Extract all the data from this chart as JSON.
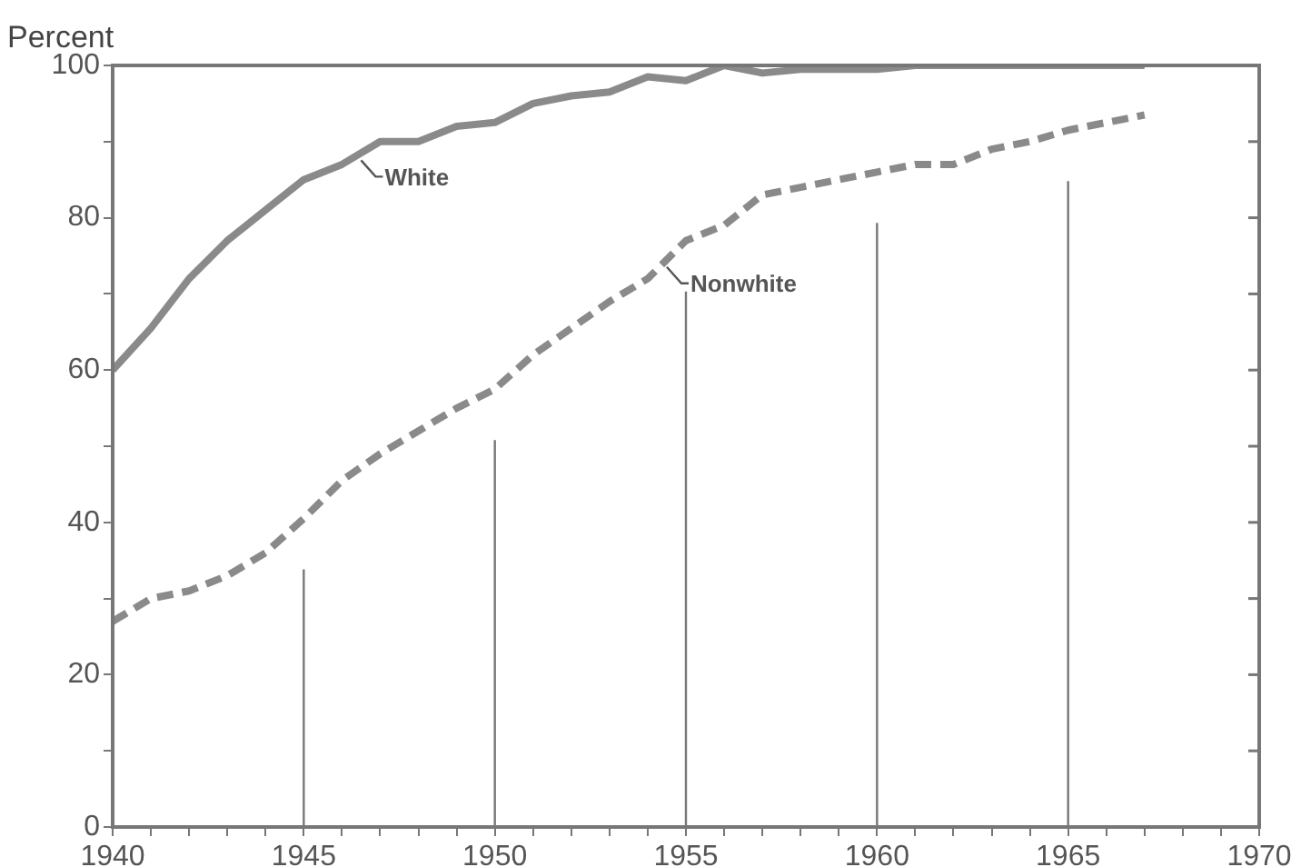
{
  "chart_data": {
    "type": "line",
    "ylabel": "Percent",
    "x": [
      1940,
      1941,
      1942,
      1943,
      1944,
      1945,
      1946,
      1947,
      1948,
      1949,
      1950,
      1951,
      1952,
      1953,
      1954,
      1955,
      1956,
      1957,
      1958,
      1959,
      1960,
      1961,
      1962,
      1963,
      1964,
      1965,
      1966,
      1967
    ],
    "series": [
      {
        "name": "White",
        "color": "#8a8a8a",
        "line_style": "solid",
        "values": [
          60,
          65.5,
          72,
          77,
          81,
          85,
          87,
          90,
          90,
          92,
          92.5,
          95,
          96,
          96.5,
          98.5,
          98,
          100,
          99,
          99.5,
          99.5,
          99.5,
          100,
          100,
          100,
          100,
          100,
          100,
          100
        ]
      },
      {
        "name": "Nonwhite",
        "color": "#8a8a8a",
        "line_style": "dashed",
        "values": [
          27,
          30,
          31,
          33,
          36,
          40.5,
          45.5,
          49,
          52,
          55,
          57.5,
          62,
          65.5,
          69,
          72,
          77,
          79,
          83,
          84,
          85,
          86,
          87,
          87,
          89,
          90,
          91.5,
          92.5,
          93.5
        ]
      }
    ],
    "xlim": [
      1940,
      1970
    ],
    "xticks": [
      1940,
      {
        "value": 1941,
        "label": null
      },
      {
        "value": 1942,
        "label": null
      },
      {
        "value": 1943,
        "label": null
      },
      {
        "value": 1944,
        "label": null
      },
      1945,
      {
        "value": 1946,
        "label": null
      },
      {
        "value": 1947,
        "label": null
      },
      {
        "value": 1948,
        "label": null
      },
      {
        "value": 1949,
        "label": null
      },
      1950,
      {
        "value": 1951,
        "label": null
      },
      {
        "value": 1952,
        "label": null
      },
      {
        "value": 1953,
        "label": null
      },
      {
        "value": 1954,
        "label": null
      },
      1955,
      {
        "value": 1956,
        "label": null
      },
      {
        "value": 1957,
        "label": null
      },
      {
        "value": 1958,
        "label": null
      },
      {
        "value": 1959,
        "label": null
      },
      1960,
      {
        "value": 1961,
        "label": null
      },
      {
        "value": 1962,
        "label": null
      },
      {
        "value": 1963,
        "label": null
      },
      {
        "value": 1964,
        "label": null
      },
      1965,
      {
        "value": 1966,
        "label": null
      },
      {
        "value": 1967,
        "label": null
      },
      {
        "value": 1968,
        "label": null
      },
      {
        "value": 1969,
        "label": null
      },
      1970
    ],
    "ylim": [
      0,
      100
    ],
    "yticks": [
      0,
      {
        "value": 10,
        "label": null
      },
      20,
      {
        "value": 30,
        "label": null
      },
      40,
      {
        "value": 50,
        "label": null
      },
      60,
      {
        "value": 70,
        "label": null
      },
      80,
      {
        "value": 90,
        "label": null
      },
      100
    ],
    "ref_lines": [
      {
        "axis": "x",
        "value": 1945,
        "color": "#777777"
      },
      {
        "axis": "x",
        "value": 1950,
        "color": "#777777"
      },
      {
        "axis": "x",
        "value": 1955,
        "color": "#777777"
      },
      {
        "axis": "x",
        "value": 1960,
        "color": "#777777"
      },
      {
        "axis": "x",
        "value": 1965,
        "color": "#777777"
      }
    ],
    "legend": false,
    "marker": "none"
  }
}
